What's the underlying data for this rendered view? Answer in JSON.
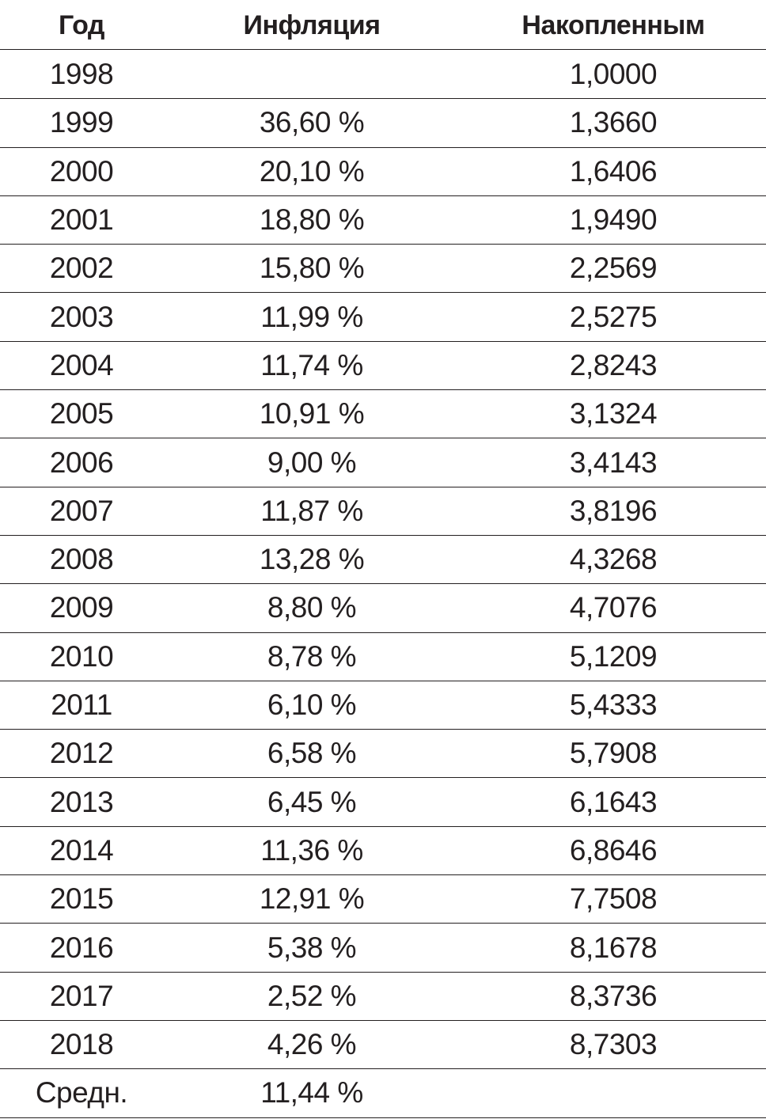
{
  "header": {
    "year": "Год",
    "inflation": "Инфляция",
    "accumulated": "Накопленным"
  },
  "rows": [
    {
      "year": "1998",
      "inflation": "",
      "accumulated": "1,0000"
    },
    {
      "year": "1999",
      "inflation": "36,60 %",
      "accumulated": "1,3660"
    },
    {
      "year": "2000",
      "inflation": "20,10 %",
      "accumulated": "1,6406"
    },
    {
      "year": "2001",
      "inflation": "18,80 %",
      "accumulated": "1,9490"
    },
    {
      "year": "2002",
      "inflation": "15,80 %",
      "accumulated": "2,2569"
    },
    {
      "year": "2003",
      "inflation": "11,99 %",
      "accumulated": "2,5275"
    },
    {
      "year": "2004",
      "inflation": "11,74 %",
      "accumulated": "2,8243"
    },
    {
      "year": "2005",
      "inflation": "10,91 %",
      "accumulated": "3,1324"
    },
    {
      "year": "2006",
      "inflation": "9,00 %",
      "accumulated": "3,4143"
    },
    {
      "year": "2007",
      "inflation": "11,87 %",
      "accumulated": "3,8196"
    },
    {
      "year": "2008",
      "inflation": "13,28 %",
      "accumulated": "4,3268"
    },
    {
      "year": "2009",
      "inflation": "8,80 %",
      "accumulated": "4,7076"
    },
    {
      "year": "2010",
      "inflation": "8,78 %",
      "accumulated": "5,1209"
    },
    {
      "year": "2011",
      "inflation": "6,10 %",
      "accumulated": "5,4333"
    },
    {
      "year": "2012",
      "inflation": "6,58 %",
      "accumulated": "5,7908"
    },
    {
      "year": "2013",
      "inflation": "6,45 %",
      "accumulated": "6,1643"
    },
    {
      "year": "2014",
      "inflation": "11,36 %",
      "accumulated": "6,8646"
    },
    {
      "year": "2015",
      "inflation": "12,91 %",
      "accumulated": "7,7508"
    },
    {
      "year": "2016",
      "inflation": "5,38 %",
      "accumulated": "8,1678"
    },
    {
      "year": "2017",
      "inflation": "2,52 %",
      "accumulated": "8,3736"
    },
    {
      "year": "2018",
      "inflation": "4,26 %",
      "accumulated": "8,7303"
    },
    {
      "year": "Средн.",
      "inflation": "11,44 %",
      "accumulated": ""
    }
  ]
}
